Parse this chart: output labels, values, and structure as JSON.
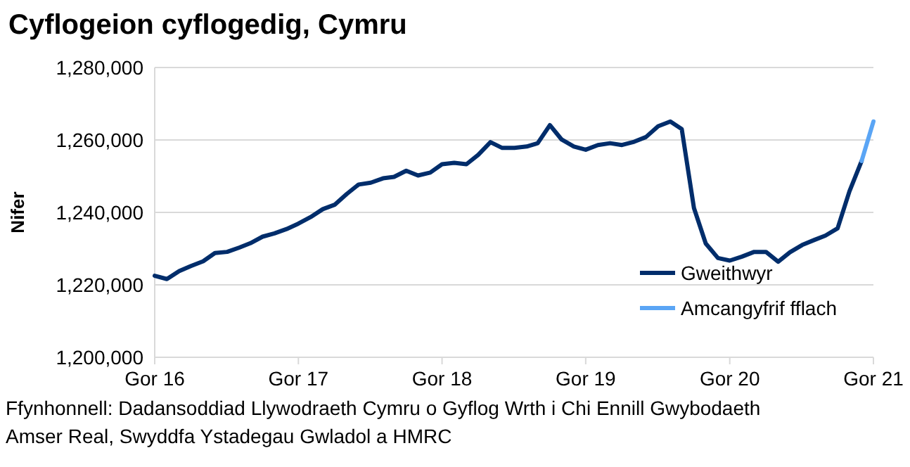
{
  "chart_data": {
    "type": "line",
    "title": "Cyflogeion cyflogedig, Cymru",
    "ylabel": "Nifer",
    "x": [
      "2016-07",
      "2016-08",
      "2016-09",
      "2016-10",
      "2016-11",
      "2016-12",
      "2017-01",
      "2017-02",
      "2017-03",
      "2017-04",
      "2017-05",
      "2017-06",
      "2017-07",
      "2017-08",
      "2017-09",
      "2017-10",
      "2017-11",
      "2017-12",
      "2018-01",
      "2018-02",
      "2018-03",
      "2018-04",
      "2018-05",
      "2018-06",
      "2018-07",
      "2018-08",
      "2018-09",
      "2018-10",
      "2018-11",
      "2018-12",
      "2019-01",
      "2019-02",
      "2019-03",
      "2019-04",
      "2019-05",
      "2019-06",
      "2019-07",
      "2019-08",
      "2019-09",
      "2019-10",
      "2019-11",
      "2019-12",
      "2020-01",
      "2020-02",
      "2020-03",
      "2020-04",
      "2020-05",
      "2020-06",
      "2020-07",
      "2020-08",
      "2020-09",
      "2020-10",
      "2020-11",
      "2020-12",
      "2021-01",
      "2021-02",
      "2021-03",
      "2021-04",
      "2021-05",
      "2021-06",
      "2021-07"
    ],
    "series": [
      {
        "name": "Gweithwyr",
        "color": "#002d6b",
        "values": [
          1222500,
          1221600,
          1223800,
          1225200,
          1226500,
          1228800,
          1229100,
          1230300,
          1231500,
          1233300,
          1234200,
          1235400,
          1236900,
          1238700,
          1240900,
          1242100,
          1245100,
          1247700,
          1248200,
          1249400,
          1249800,
          1251500,
          1250200,
          1251000,
          1253300,
          1253700,
          1253300,
          1255900,
          1259400,
          1257800,
          1257800,
          1258200,
          1259100,
          1264100,
          1260100,
          1258200,
          1257300,
          1258600,
          1259100,
          1258600,
          1259500,
          1260800,
          1263800,
          1265100,
          1263000,
          1241200,
          1231400,
          1227400,
          1226700,
          1227800,
          1229100,
          1229100,
          1226400,
          1229000,
          1231000,
          1232400,
          1233600,
          1235600,
          1245800,
          1254200,
          null
        ]
      },
      {
        "name": "Amcangyfrif fflach",
        "color": "#5aa5f5",
        "values": [
          null,
          null,
          null,
          null,
          null,
          null,
          null,
          null,
          null,
          null,
          null,
          null,
          null,
          null,
          null,
          null,
          null,
          null,
          null,
          null,
          null,
          null,
          null,
          null,
          null,
          null,
          null,
          null,
          null,
          null,
          null,
          null,
          null,
          null,
          null,
          null,
          null,
          null,
          null,
          null,
          null,
          null,
          null,
          null,
          null,
          null,
          null,
          null,
          null,
          null,
          null,
          null,
          null,
          null,
          null,
          null,
          null,
          null,
          null,
          1254200,
          1265100
        ]
      }
    ],
    "xlim": [
      "2016-07",
      "2021-07"
    ],
    "xticks": [
      {
        "value": "2016-07",
        "label": "Gor 16"
      },
      {
        "value": "2017-07",
        "label": "Gor 17"
      },
      {
        "value": "2018-07",
        "label": "Gor 18"
      },
      {
        "value": "2019-07",
        "label": "Gor 19"
      },
      {
        "value": "2020-07",
        "label": "Gor 20"
      },
      {
        "value": "2021-07",
        "label": "Gor 21"
      }
    ],
    "ylim": [
      1200000,
      1280000
    ],
    "yticks": [
      {
        "value": 1200000,
        "label": "1,200,000"
      },
      {
        "value": 1220000,
        "label": "1,220,000"
      },
      {
        "value": 1240000,
        "label": "1,240,000"
      },
      {
        "value": 1260000,
        "label": "1,260,000"
      },
      {
        "value": 1280000,
        "label": "1,280,000"
      }
    ],
    "grid": "y",
    "legend": "bottom right",
    "annotations": [
      "Ffynhonnell: Dadansoddiad Llywodraeth Cymru o Gyflog Wrth i Chi Ennill Gwybodaeth Amser Real, Swyddfa Ystadegau Gwladol a HMRC"
    ]
  }
}
